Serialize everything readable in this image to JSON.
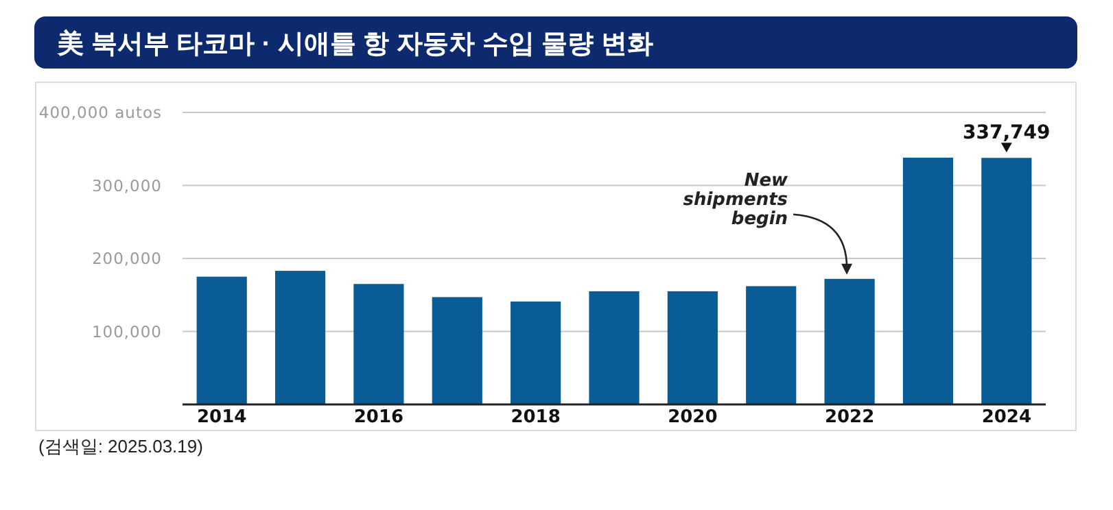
{
  "chart_data": {
    "type": "bar",
    "title": "美 북서부 타코마 · 시애틀 항 자동차 수입 물량 변화",
    "categories": [
      "2014",
      null,
      "2016",
      null,
      "2018",
      null,
      "2020",
      null,
      "2022",
      null,
      "2024"
    ],
    "values": [
      175000,
      183000,
      165000,
      147000,
      141000,
      155000,
      155000,
      162000,
      172000,
      338000,
      337749
    ],
    "color": "#0a5c96",
    "value_labels": [
      null,
      null,
      null,
      null,
      null,
      null,
      null,
      null,
      null,
      null,
      "337,749"
    ],
    "ylim": [
      0,
      400000
    ],
    "yticks": [
      {
        "value": 0,
        "label": null
      },
      {
        "value": 100000,
        "label": "100,000"
      },
      {
        "value": 200000,
        "label": "200,000"
      },
      {
        "value": 300000,
        "label": "300,000"
      },
      {
        "value": 400000,
        "label": "400,000 autos"
      }
    ],
    "grid": "y",
    "annotations": [
      {
        "text": "New shipments begin",
        "x": "2022",
        "y": 172000
      },
      "(검색일: 2025.03.19)"
    ]
  }
}
